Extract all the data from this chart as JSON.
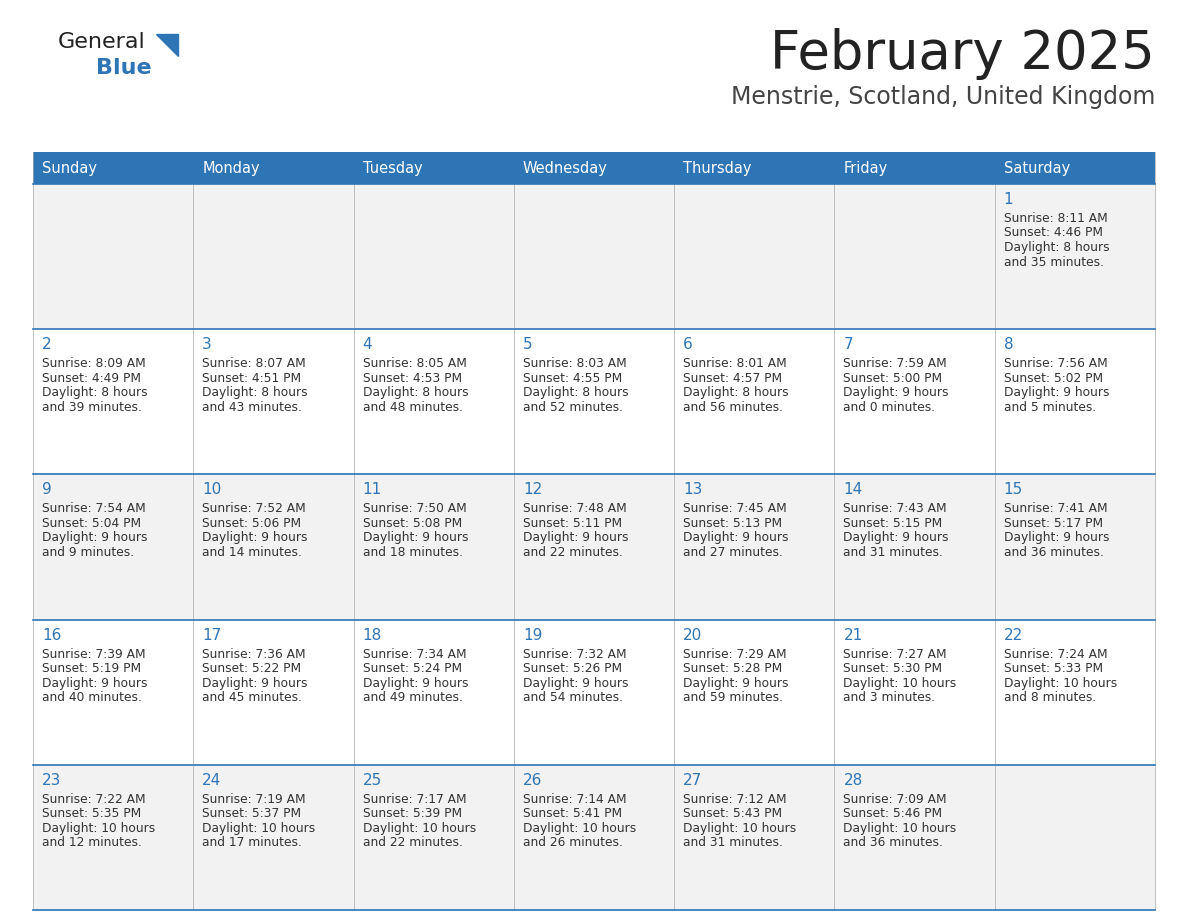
{
  "title": "February 2025",
  "subtitle": "Menstrie, Scotland, United Kingdom",
  "header_bg": "#2E75B6",
  "header_text_color": "#FFFFFF",
  "cell_bg_odd": "#F2F2F2",
  "cell_bg_even": "#FFFFFF",
  "border_color": "#2E75B6",
  "separator_color": "#AAAAAA",
  "day_headers": [
    "Sunday",
    "Monday",
    "Tuesday",
    "Wednesday",
    "Thursday",
    "Friday",
    "Saturday"
  ],
  "title_color": "#222222",
  "subtitle_color": "#444444",
  "day_num_color": "#2E75B6",
  "info_color": "#333333",
  "logo_general_color": "#222222",
  "logo_blue_color": "#2E75B6",
  "calendar": [
    [
      null,
      null,
      null,
      null,
      null,
      null,
      {
        "day": 1,
        "sunrise": "8:11 AM",
        "sunset": "4:46 PM",
        "daylight": "8 hours and 35 minutes."
      }
    ],
    [
      {
        "day": 2,
        "sunrise": "8:09 AM",
        "sunset": "4:49 PM",
        "daylight": "8 hours and 39 minutes."
      },
      {
        "day": 3,
        "sunrise": "8:07 AM",
        "sunset": "4:51 PM",
        "daylight": "8 hours and 43 minutes."
      },
      {
        "day": 4,
        "sunrise": "8:05 AM",
        "sunset": "4:53 PM",
        "daylight": "8 hours and 48 minutes."
      },
      {
        "day": 5,
        "sunrise": "8:03 AM",
        "sunset": "4:55 PM",
        "daylight": "8 hours and 52 minutes."
      },
      {
        "day": 6,
        "sunrise": "8:01 AM",
        "sunset": "4:57 PM",
        "daylight": "8 hours and 56 minutes."
      },
      {
        "day": 7,
        "sunrise": "7:59 AM",
        "sunset": "5:00 PM",
        "daylight": "9 hours and 0 minutes."
      },
      {
        "day": 8,
        "sunrise": "7:56 AM",
        "sunset": "5:02 PM",
        "daylight": "9 hours and 5 minutes."
      }
    ],
    [
      {
        "day": 9,
        "sunrise": "7:54 AM",
        "sunset": "5:04 PM",
        "daylight": "9 hours and 9 minutes."
      },
      {
        "day": 10,
        "sunrise": "7:52 AM",
        "sunset": "5:06 PM",
        "daylight": "9 hours and 14 minutes."
      },
      {
        "day": 11,
        "sunrise": "7:50 AM",
        "sunset": "5:08 PM",
        "daylight": "9 hours and 18 minutes."
      },
      {
        "day": 12,
        "sunrise": "7:48 AM",
        "sunset": "5:11 PM",
        "daylight": "9 hours and 22 minutes."
      },
      {
        "day": 13,
        "sunrise": "7:45 AM",
        "sunset": "5:13 PM",
        "daylight": "9 hours and 27 minutes."
      },
      {
        "day": 14,
        "sunrise": "7:43 AM",
        "sunset": "5:15 PM",
        "daylight": "9 hours and 31 minutes."
      },
      {
        "day": 15,
        "sunrise": "7:41 AM",
        "sunset": "5:17 PM",
        "daylight": "9 hours and 36 minutes."
      }
    ],
    [
      {
        "day": 16,
        "sunrise": "7:39 AM",
        "sunset": "5:19 PM",
        "daylight": "9 hours and 40 minutes."
      },
      {
        "day": 17,
        "sunrise": "7:36 AM",
        "sunset": "5:22 PM",
        "daylight": "9 hours and 45 minutes."
      },
      {
        "day": 18,
        "sunrise": "7:34 AM",
        "sunset": "5:24 PM",
        "daylight": "9 hours and 49 minutes."
      },
      {
        "day": 19,
        "sunrise": "7:32 AM",
        "sunset": "5:26 PM",
        "daylight": "9 hours and 54 minutes."
      },
      {
        "day": 20,
        "sunrise": "7:29 AM",
        "sunset": "5:28 PM",
        "daylight": "9 hours and 59 minutes."
      },
      {
        "day": 21,
        "sunrise": "7:27 AM",
        "sunset": "5:30 PM",
        "daylight": "10 hours and 3 minutes."
      },
      {
        "day": 22,
        "sunrise": "7:24 AM",
        "sunset": "5:33 PM",
        "daylight": "10 hours and 8 minutes."
      }
    ],
    [
      {
        "day": 23,
        "sunrise": "7:22 AM",
        "sunset": "5:35 PM",
        "daylight": "10 hours and 12 minutes."
      },
      {
        "day": 24,
        "sunrise": "7:19 AM",
        "sunset": "5:37 PM",
        "daylight": "10 hours and 17 minutes."
      },
      {
        "day": 25,
        "sunrise": "7:17 AM",
        "sunset": "5:39 PM",
        "daylight": "10 hours and 22 minutes."
      },
      {
        "day": 26,
        "sunrise": "7:14 AM",
        "sunset": "5:41 PM",
        "daylight": "10 hours and 26 minutes."
      },
      {
        "day": 27,
        "sunrise": "7:12 AM",
        "sunset": "5:43 PM",
        "daylight": "10 hours and 31 minutes."
      },
      {
        "day": 28,
        "sunrise": "7:09 AM",
        "sunset": "5:46 PM",
        "daylight": "10 hours and 36 minutes."
      },
      null
    ]
  ]
}
